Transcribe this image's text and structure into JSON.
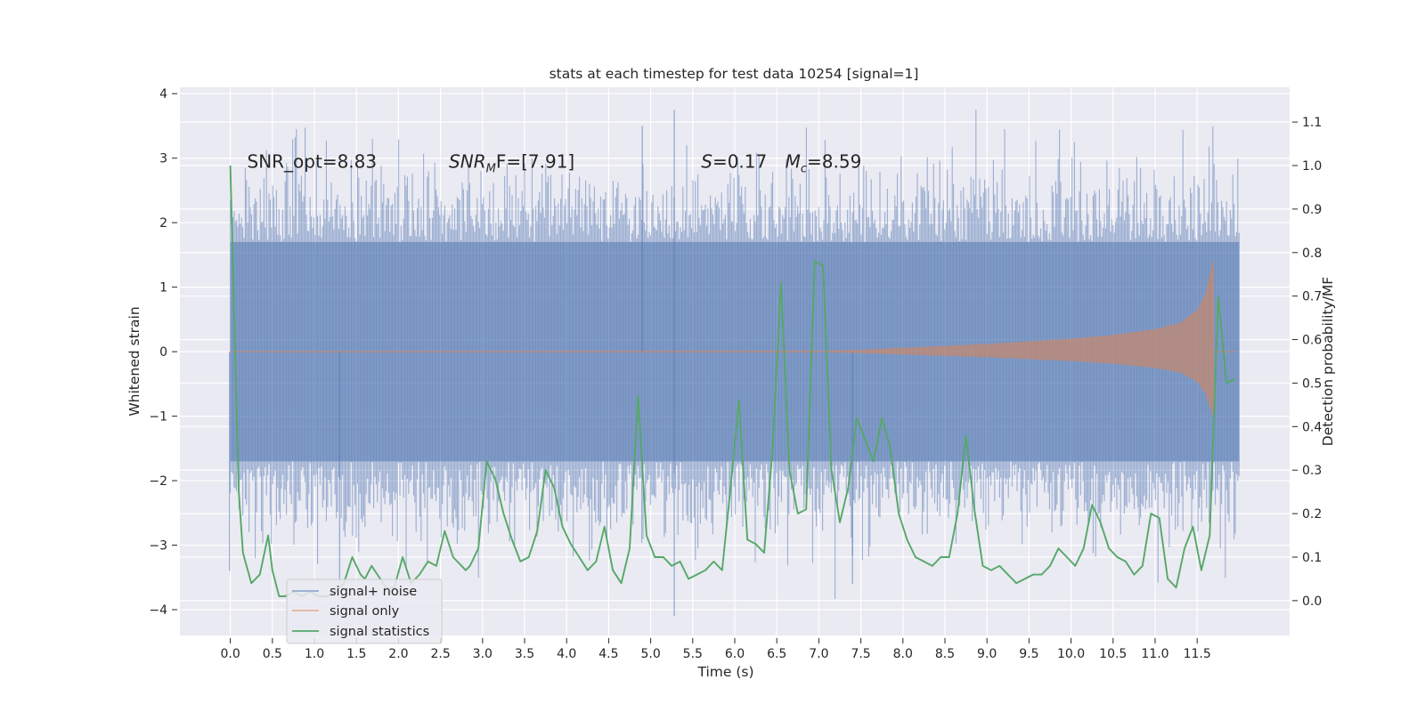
{
  "chart_data": {
    "type": "line",
    "title": "stats at each timestep for test data 10254 [signal=1]",
    "xlabel": "Time (s)",
    "ylabel": "Whitened strain",
    "y2label": "Detection probability/MF",
    "xlim": [
      -0.6,
      12.6
    ],
    "ylim": [
      -4.4,
      4.1
    ],
    "y2lim": [
      -0.08,
      1.18
    ],
    "x_ticks": [
      0.0,
      0.5,
      1.0,
      1.5,
      2.0,
      2.5,
      3.0,
      3.5,
      4.0,
      4.5,
      5.0,
      5.5,
      6.0,
      6.5,
      7.0,
      7.5,
      8.0,
      8.5,
      9.0,
      9.5,
      10.0,
      10.5,
      11.0,
      11.5
    ],
    "x_tick_labels": [
      "0.0",
      "0.5",
      "1.0",
      "1.5",
      "2.0",
      "2.5",
      "3.0",
      "3.5",
      "4.0",
      "4.5",
      "5.0",
      "5.5",
      "6.0",
      "6.5",
      "7.0",
      "7.5",
      "8.0",
      "8.5",
      "9.0",
      "9.5",
      "10.0",
      "10.5",
      "11.0",
      "11.5"
    ],
    "y_ticks": [
      -4,
      -3,
      -2,
      -1,
      0,
      1,
      2,
      3,
      4
    ],
    "y_tick_labels": [
      "−4",
      "−3",
      "−2",
      "−1",
      "0",
      "1",
      "2",
      "3",
      "4"
    ],
    "y2_ticks": [
      0.0,
      0.1,
      0.2,
      0.3,
      0.4,
      0.5,
      0.6,
      0.7,
      0.8,
      0.9,
      1.0,
      1.1
    ],
    "y2_tick_labels": [
      "0.0",
      "0.1",
      "0.2",
      "0.3",
      "0.4",
      "0.5",
      "0.6",
      "0.7",
      "0.8",
      "0.9",
      "1.0",
      "1.1"
    ],
    "grid": true,
    "legend_position": "lower-left",
    "annotations": [
      {
        "prefix": "SNR_opt=8.83",
        "sub": "",
        "suffix": "",
        "italic": false,
        "x": 0.2,
        "y": 2.95
      },
      {
        "prefix": "SNR",
        "sub": "M",
        "suffix": "F=[7.91]",
        "italic": true,
        "x": 2.6,
        "y": 2.95
      },
      {
        "prefix": "S",
        "sub": "",
        "suffix": "=0.17",
        "italic": true,
        "x": 5.6,
        "y": 2.95
      },
      {
        "prefix": "M",
        "sub": "c",
        "suffix": "=8.59",
        "italic": true,
        "x": 6.6,
        "y": 2.95
      }
    ],
    "series": [
      {
        "name": "signal+ noise",
        "axis": "left",
        "kind": "noise-band",
        "color": "#4c72b0",
        "x_range": [
          0.0,
          12.0
        ],
        "core_amplitude": 1.7,
        "peak_max": 3.75,
        "peak_min": -4.1
      },
      {
        "name": "signal only",
        "axis": "left",
        "kind": "chirp",
        "color": "#dd8452",
        "x_range": [
          0.0,
          11.7
        ],
        "merger_time": 11.7,
        "peak_amplitude": 1.45,
        "envelope_points": [
          [
            7.0,
            0.01
          ],
          [
            7.5,
            0.03
          ],
          [
            8.0,
            0.06
          ],
          [
            9.0,
            0.12
          ],
          [
            10.0,
            0.2
          ],
          [
            10.5,
            0.26
          ],
          [
            11.0,
            0.35
          ],
          [
            11.3,
            0.45
          ],
          [
            11.5,
            0.65
          ],
          [
            11.6,
            0.9
          ],
          [
            11.65,
            1.2
          ],
          [
            11.7,
            1.45
          ]
        ]
      },
      {
        "name": "signal statistics",
        "axis": "right",
        "color": "#55a868",
        "x": [
          0.0,
          0.1,
          0.15,
          0.25,
          0.35,
          0.45,
          0.5,
          0.58,
          0.65,
          0.75,
          0.85,
          0.95,
          1.05,
          1.15,
          1.25,
          1.35,
          1.45,
          1.55,
          1.6,
          1.68,
          1.75,
          1.85,
          1.95,
          2.05,
          2.15,
          2.25,
          2.35,
          2.45,
          2.55,
          2.65,
          2.75,
          2.8,
          2.85,
          2.95,
          3.05,
          3.15,
          3.25,
          3.35,
          3.45,
          3.55,
          3.65,
          3.75,
          3.85,
          3.95,
          4.05,
          4.15,
          4.25,
          4.35,
          4.45,
          4.55,
          4.65,
          4.75,
          4.85,
          4.95,
          5.05,
          5.15,
          5.25,
          5.35,
          5.45,
          5.55,
          5.65,
          5.75,
          5.85,
          5.95,
          6.05,
          6.15,
          6.25,
          6.35,
          6.45,
          6.55,
          6.65,
          6.75,
          6.85,
          6.95,
          7.05,
          7.15,
          7.25,
          7.35,
          7.45,
          7.55,
          7.65,
          7.75,
          7.85,
          7.95,
          8.05,
          8.15,
          8.25,
          8.35,
          8.45,
          8.55,
          8.65,
          8.75,
          8.85,
          8.95,
          9.05,
          9.15,
          9.25,
          9.35,
          9.45,
          9.55,
          9.65,
          9.75,
          9.85,
          9.95,
          10.05,
          10.15,
          10.25,
          10.35,
          10.45,
          10.55,
          10.65,
          10.75,
          10.85,
          10.95,
          11.05,
          11.15,
          11.25,
          11.35,
          11.45,
          11.55,
          11.65,
          11.75,
          11.85,
          11.95
        ],
        "y": [
          1.0,
          0.25,
          0.11,
          0.04,
          0.06,
          0.15,
          0.07,
          0.01,
          0.01,
          0.02,
          0.01,
          0.02,
          0.01,
          0.01,
          0.02,
          0.04,
          0.1,
          0.06,
          0.05,
          0.08,
          0.06,
          0.03,
          0.03,
          0.1,
          0.04,
          0.06,
          0.09,
          0.08,
          0.16,
          0.1,
          0.08,
          0.07,
          0.08,
          0.12,
          0.32,
          0.28,
          0.2,
          0.14,
          0.09,
          0.1,
          0.16,
          0.3,
          0.26,
          0.17,
          0.13,
          0.1,
          0.07,
          0.09,
          0.17,
          0.07,
          0.04,
          0.12,
          0.47,
          0.15,
          0.1,
          0.1,
          0.08,
          0.09,
          0.05,
          0.06,
          0.07,
          0.09,
          0.07,
          0.26,
          0.46,
          0.14,
          0.13,
          0.11,
          0.35,
          0.73,
          0.3,
          0.2,
          0.21,
          0.78,
          0.77,
          0.3,
          0.18,
          0.26,
          0.42,
          0.37,
          0.32,
          0.42,
          0.35,
          0.2,
          0.14,
          0.1,
          0.09,
          0.08,
          0.1,
          0.1,
          0.2,
          0.38,
          0.21,
          0.08,
          0.07,
          0.08,
          0.06,
          0.04,
          0.05,
          0.06,
          0.06,
          0.08,
          0.12,
          0.1,
          0.08,
          0.12,
          0.22,
          0.18,
          0.12,
          0.1,
          0.09,
          0.06,
          0.08,
          0.2,
          0.19,
          0.05,
          0.03,
          0.12,
          0.17,
          0.07,
          0.15,
          0.7,
          0.5,
          0.51
        ]
      }
    ]
  }
}
